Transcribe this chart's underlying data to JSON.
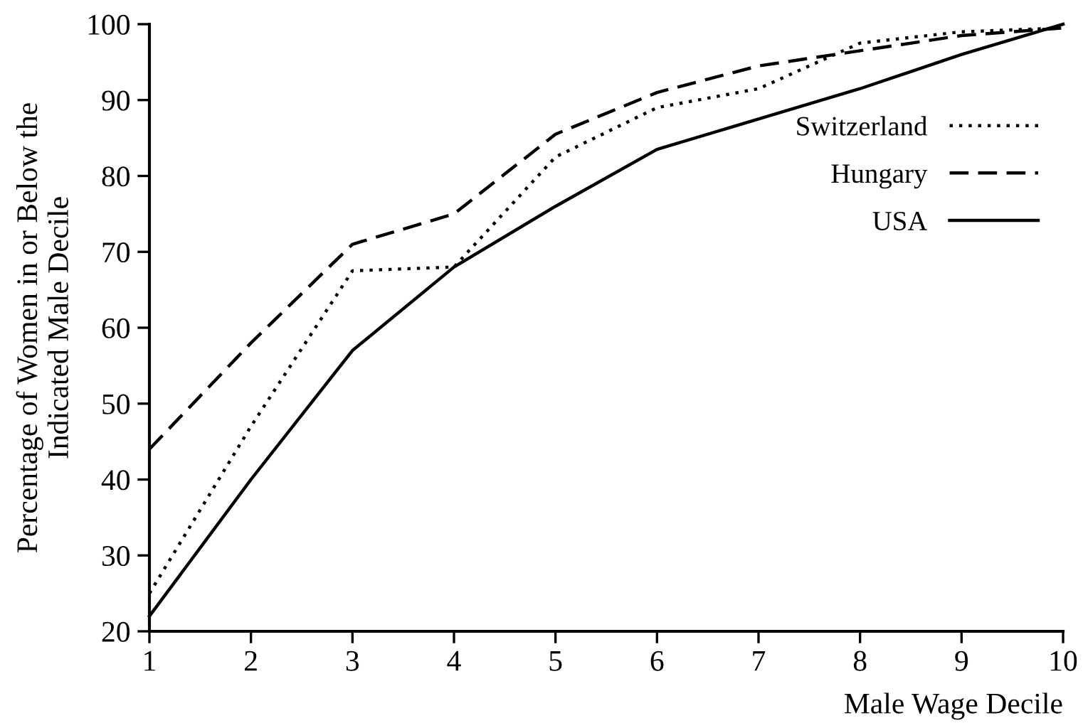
{
  "chart_data": {
    "type": "line",
    "xlabel": "Male Wage Decile",
    "ylabel": "Percentage of Women in or Below the\nIndicated Male Decile",
    "x": [
      1,
      2,
      3,
      4,
      5,
      6,
      7,
      8,
      9,
      10
    ],
    "series": [
      {
        "name": "Switzerland",
        "color": "#000000",
        "line_style": "dotted",
        "values": [
          25,
          47,
          67.5,
          68,
          82.5,
          89,
          91.5,
          97.5,
          99,
          99.5
        ]
      },
      {
        "name": "Hungary",
        "color": "#000000",
        "line_style": "dashed",
        "values": [
          44,
          58,
          71,
          75,
          85.5,
          91,
          94.5,
          96.5,
          98.5,
          99.5
        ]
      },
      {
        "name": "USA",
        "color": "#000000",
        "line_style": "solid",
        "values": [
          22,
          40,
          57,
          68,
          76,
          83.5,
          87.5,
          91.5,
          96,
          100
        ]
      }
    ],
    "xlim": [
      1,
      10
    ],
    "xticks": [
      1,
      2,
      3,
      4,
      5,
      6,
      7,
      8,
      9,
      10
    ],
    "ylim": [
      20,
      100
    ],
    "yticks": [
      20,
      30,
      40,
      50,
      60,
      70,
      80,
      90,
      100
    ],
    "grid": false,
    "legend": "right",
    "marker": "none"
  }
}
